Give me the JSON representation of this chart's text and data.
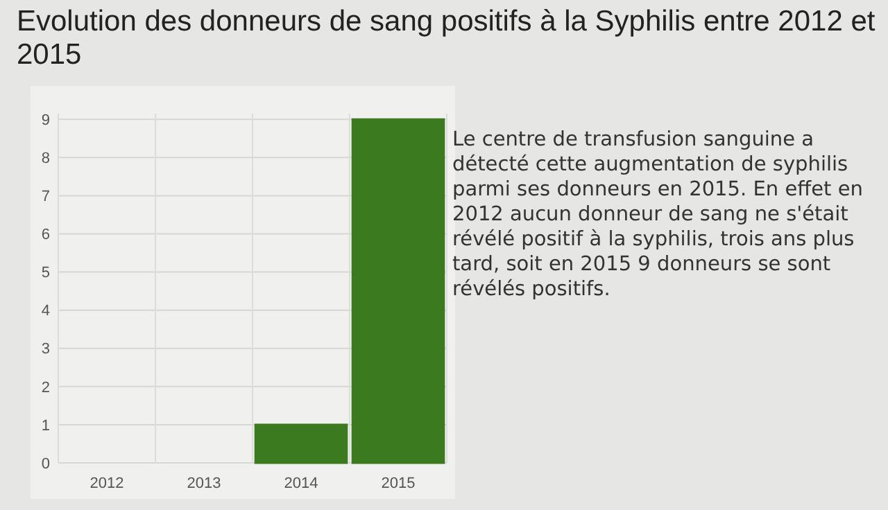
{
  "chart_data": {
    "type": "bar",
    "title": "Evolution des donneurs de sang positifs à la Syphilis entre 2012 et 2015",
    "categories": [
      "2012",
      "2013",
      "2014",
      "2015"
    ],
    "values": [
      0,
      0,
      1,
      9
    ],
    "color": "#3b7a1e",
    "ylim": [
      0,
      9.15
    ],
    "yticks": [
      0,
      1,
      2,
      3,
      4,
      5,
      6,
      7,
      8,
      9
    ],
    "grid": true,
    "annotations": [
      "Le centre de transfusion sanguine a détecté cette augmentation de syphilis parmi ses donneurs en 2015. En effet en 2012 aucun donneur de sang ne s'était révélé positif à la syphilis, trois ans plus tard, soit en 2015 9 donneurs se sont révélés positifs."
    ]
  }
}
